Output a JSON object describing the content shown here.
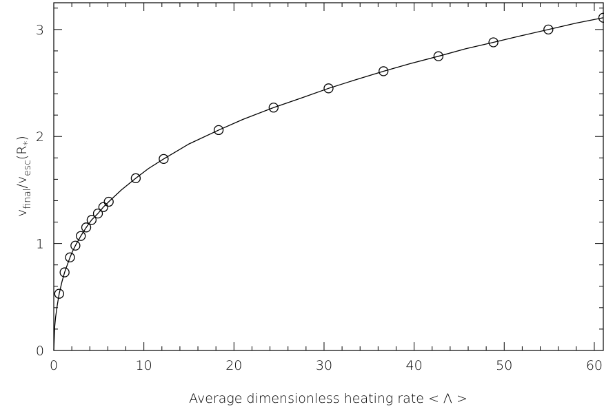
{
  "chart_data": {
    "type": "scatter",
    "title": "",
    "xlabel": "Average dimensionless heating rate < Λ >",
    "ylabel": {
      "v1": "v",
      "sub1": "final",
      "slash": "/",
      "v2": "v",
      "sub2": "esc",
      "paren_open": "(R",
      "star": "*",
      "paren_close": ")"
    },
    "xlim": [
      0,
      61
    ],
    "ylim": [
      0,
      3.25
    ],
    "xticks": [
      0,
      10,
      20,
      30,
      40,
      50,
      60
    ],
    "yticks": [
      0,
      1,
      2,
      3
    ],
    "grid": false,
    "series": [
      {
        "marker": "open-circle",
        "x": [
          0.6,
          1.2,
          1.8,
          2.4,
          3.0,
          3.6,
          4.2,
          4.9,
          5.5,
          6.1,
          9.1,
          12.2,
          18.3,
          24.4,
          30.5,
          36.6,
          42.7,
          48.8,
          54.9,
          61.0
        ],
        "y": [
          0.53,
          0.73,
          0.87,
          0.98,
          1.07,
          1.15,
          1.22,
          1.28,
          1.34,
          1.39,
          1.61,
          1.79,
          2.06,
          2.27,
          2.45,
          2.61,
          2.75,
          2.88,
          3.0,
          3.11
        ]
      }
    ],
    "curve": {
      "style": "solid-line",
      "x": [
        0,
        0.1,
        0.2,
        0.4,
        0.6,
        0.9,
        1.2,
        1.5,
        1.8,
        2.1,
        2.4,
        3.0,
        3.6,
        4.2,
        4.9,
        5.5,
        6.1,
        7.5,
        9.1,
        10.5,
        12.2,
        15.0,
        18.3,
        21.0,
        24.4,
        27.5,
        30.5,
        33.5,
        36.6,
        39.5,
        42.7,
        45.7,
        48.8,
        51.8,
        54.9,
        58.0,
        61.0
      ],
      "y": [
        0,
        0.22,
        0.31,
        0.43,
        0.53,
        0.64,
        0.73,
        0.8,
        0.87,
        0.93,
        0.98,
        1.07,
        1.15,
        1.22,
        1.28,
        1.34,
        1.39,
        1.5,
        1.61,
        1.7,
        1.79,
        1.93,
        2.06,
        2.16,
        2.27,
        2.36,
        2.45,
        2.53,
        2.61,
        2.68,
        2.75,
        2.82,
        2.88,
        2.94,
        3.0,
        3.06,
        3.11
      ]
    }
  }
}
